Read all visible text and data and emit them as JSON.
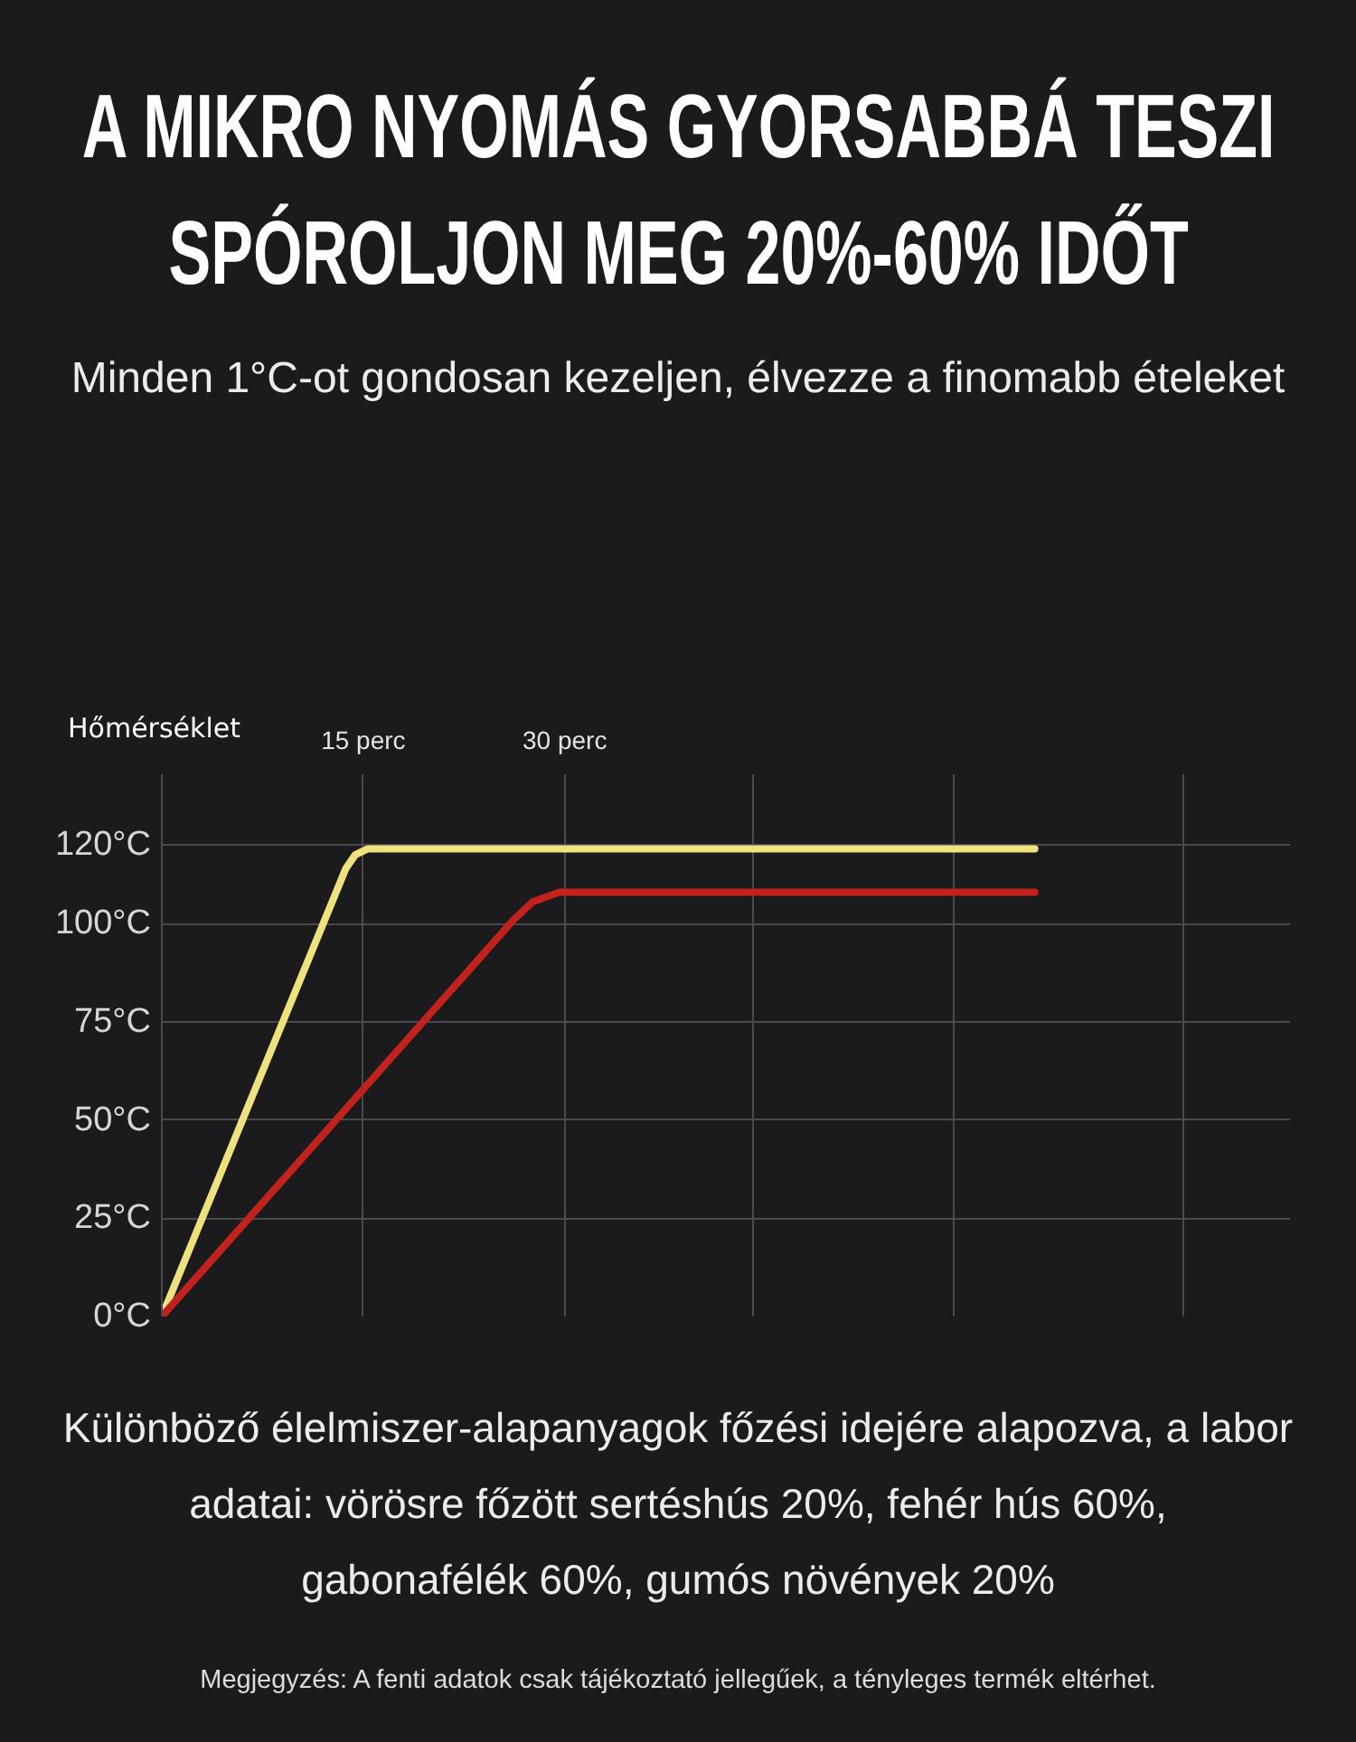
{
  "chart_data": {
    "type": "line",
    "title": "A MIKRO NYOMÁS GYORSABBÁ TESZI\nSPÓROLJON MEG 20%-60% IDŐT",
    "subtitle": "Minden 1°C-ot gondosan kezeljen, élvezze a finomabb ételeket",
    "ylabel": "Hőmérséklet",
    "annotations": [
      "Különböző élelmiszer-alapanyagok főzési idejére alapozva, a labor\nadatai: vörösre főzött sertéshús 20%, fehér hús 60%,\ngabonafélék 60%, gumós növények 20%",
      "Megjegyzés: A fenti adatok csak tájékoztató jellegűek, a tényleges termék eltérhet."
    ],
    "series": [
      {
        "color": "#ede27d",
        "x": [
          0,
          13.7,
          14.4,
          15.3,
          65
        ],
        "values": [
          0,
          114,
          117.5,
          119,
          119
        ]
      },
      {
        "color": "#c2221c",
        "x": [
          0,
          26.2,
          27.6,
          29.6,
          65
        ],
        "values": [
          0,
          101,
          105.5,
          108,
          108
        ]
      }
    ],
    "xlim": [
      0,
      84
    ],
    "ylim": [
      0,
      138
    ],
    "xticks": [
      {
        "value": 15,
        "label": "15 perc"
      },
      {
        "value": 30,
        "label": "30 perc"
      },
      {
        "value": 44,
        "label": null
      },
      {
        "value": 59,
        "label": null
      },
      {
        "value": 76,
        "label": null
      }
    ],
    "yticks": [
      {
        "value": 0,
        "label": "0°C"
      },
      {
        "value": 25,
        "label": "25°C"
      },
      {
        "value": 50,
        "label": "50°C"
      },
      {
        "value": 75,
        "label": "75°C"
      },
      {
        "value": 100,
        "label": "100°C"
      },
      {
        "value": 120,
        "label": "120°C"
      }
    ],
    "grid": true
  }
}
